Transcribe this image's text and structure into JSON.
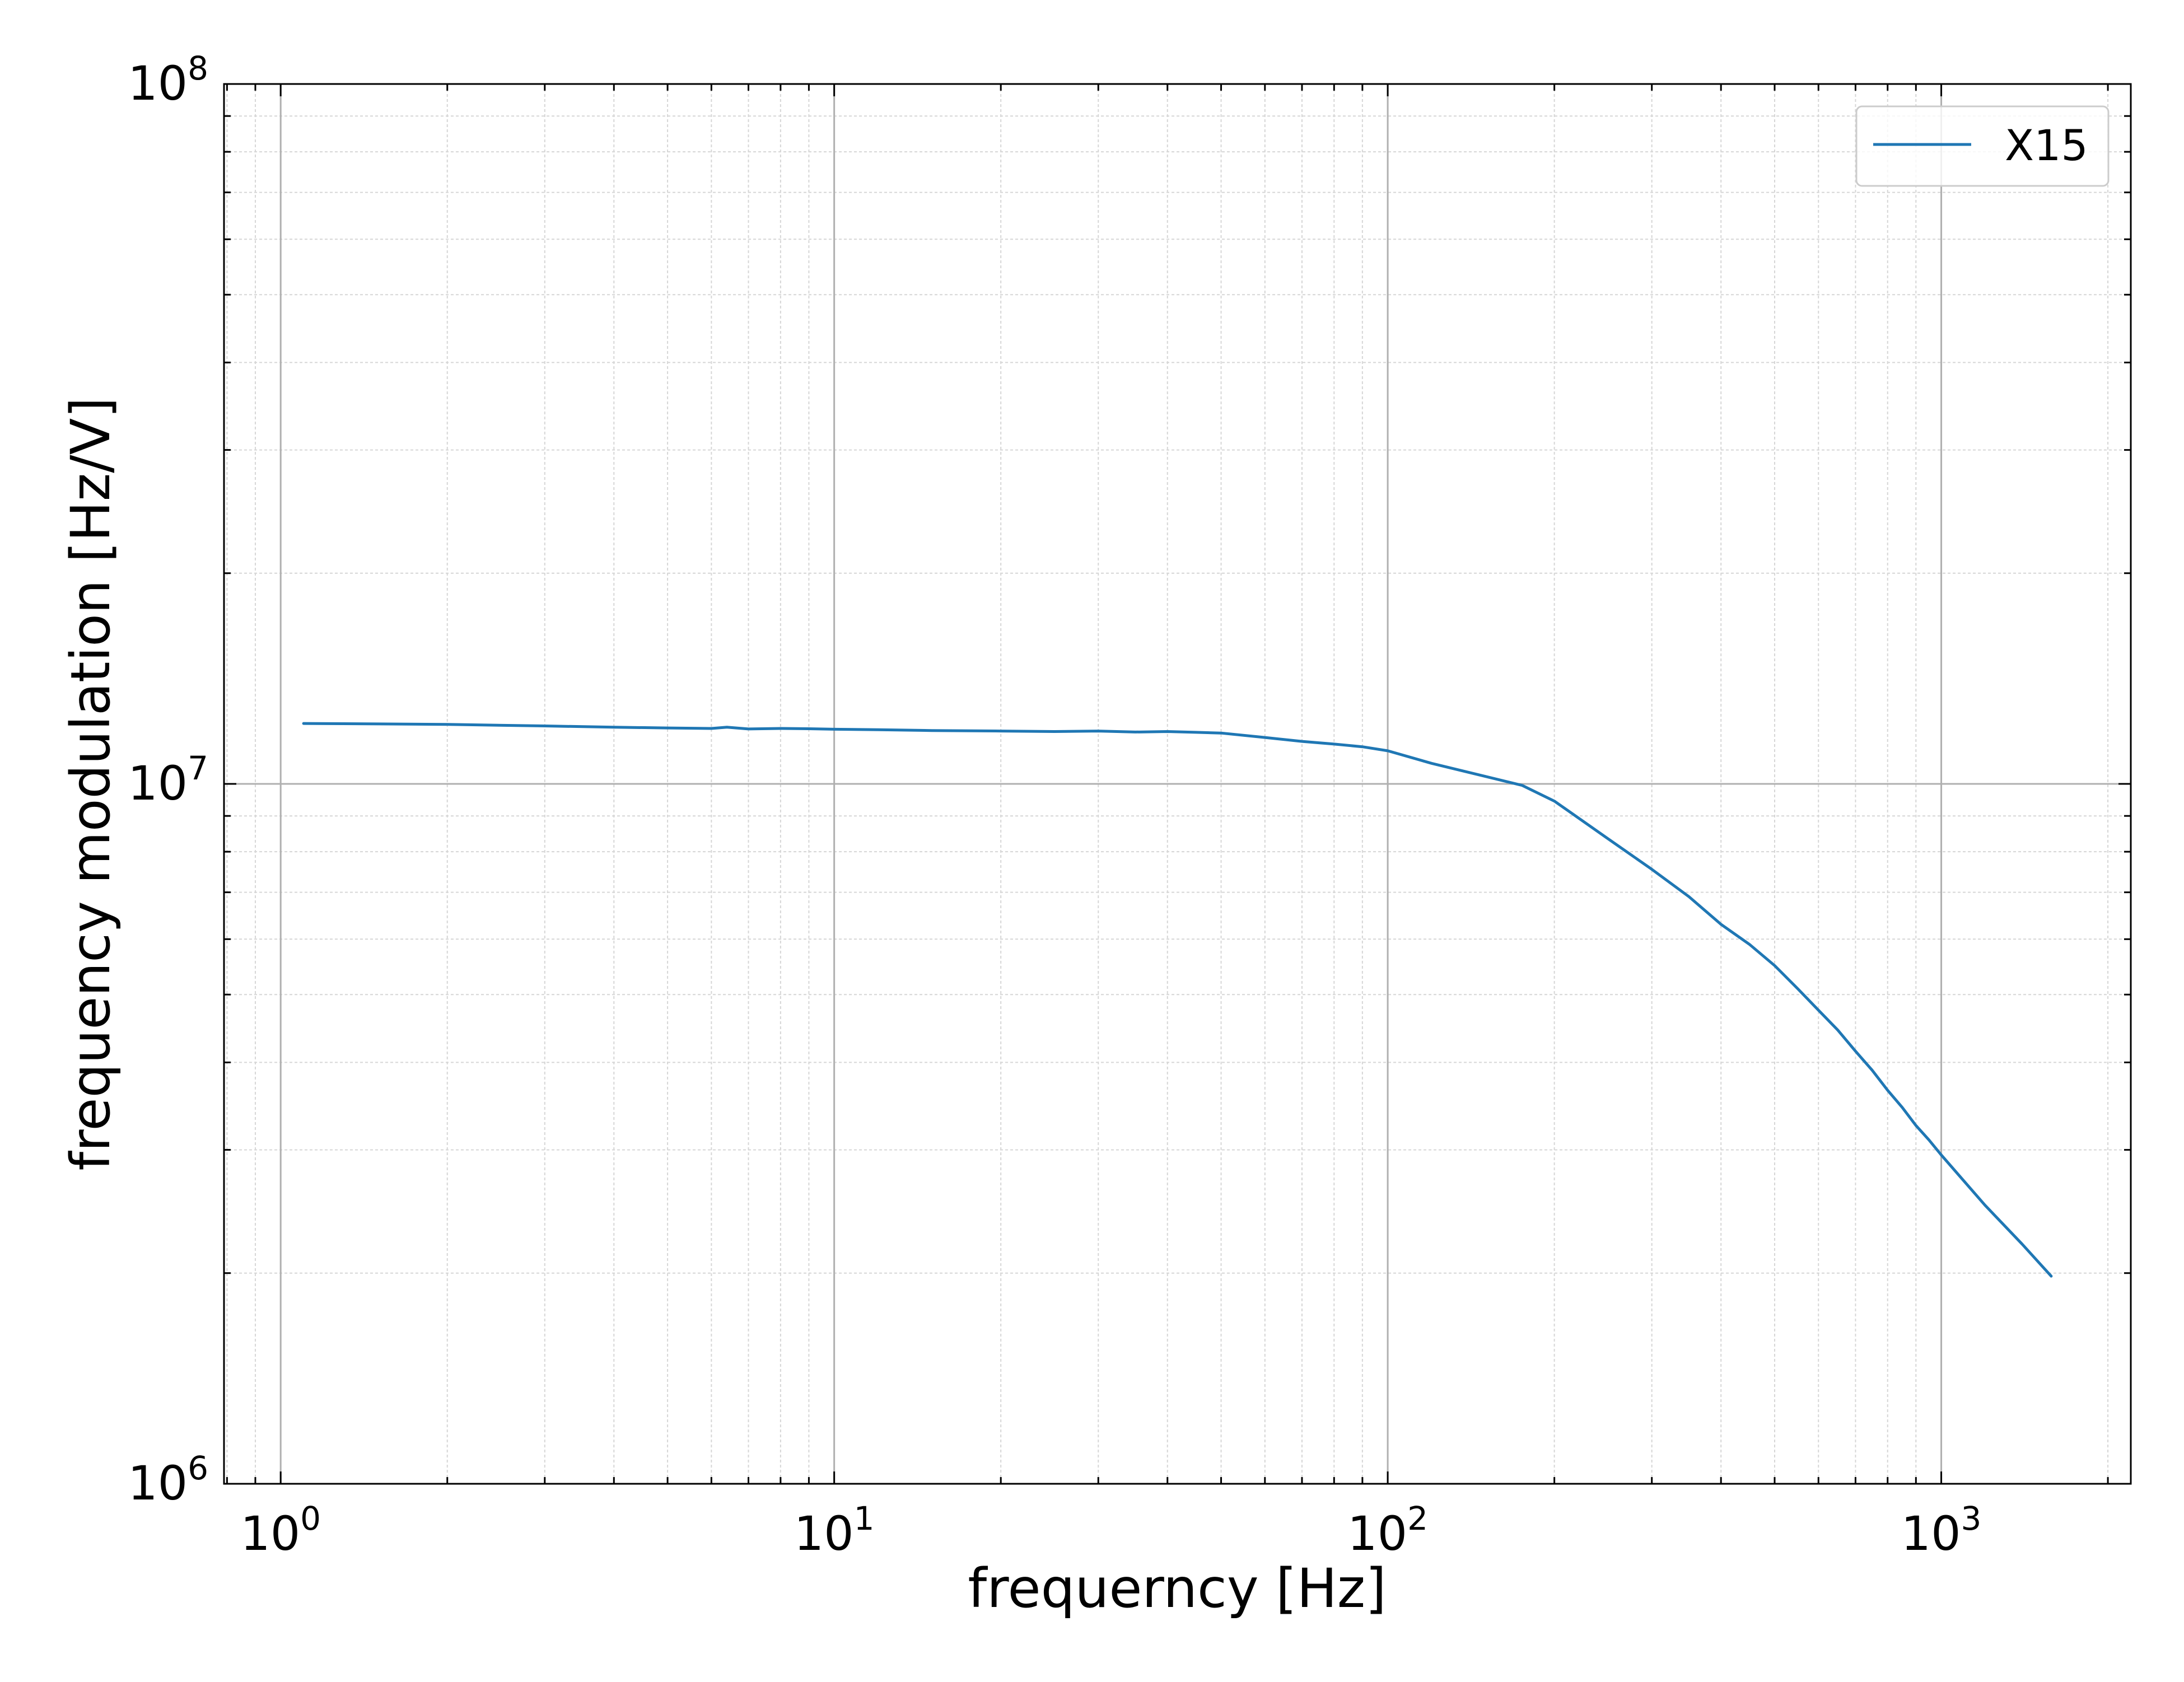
{
  "chart_data": {
    "type": "line",
    "xlabel": "frequerncy [Hz]",
    "ylabel": "frequency modulation [Hz/V]",
    "xscale": "log",
    "yscale": "log",
    "xlim": [
      0.79,
      2200
    ],
    "ylim": [
      1000000,
      100000000
    ],
    "grid": true,
    "legend_position": "top-right",
    "x_ticks": [
      {
        "base": "10",
        "exp": "0"
      },
      {
        "base": "10",
        "exp": "1"
      },
      {
        "base": "10",
        "exp": "2"
      },
      {
        "base": "10",
        "exp": "3"
      }
    ],
    "y_ticks": [
      {
        "base": "10",
        "exp": "6"
      },
      {
        "base": "10",
        "exp": "7"
      },
      {
        "base": "10",
        "exp": "8"
      }
    ],
    "series": [
      {
        "name": "X15",
        "color": "#1f77b4",
        "x": [
          1.1,
          1.5,
          2,
          3,
          4,
          5,
          6,
          6.4,
          7,
          8,
          9,
          10,
          12,
          15,
          20,
          25,
          30,
          35,
          40,
          45,
          50,
          60,
          70,
          80,
          90,
          100,
          120,
          150,
          175,
          200,
          250,
          300,
          350,
          400,
          450,
          500,
          550,
          600,
          650,
          700,
          750,
          800,
          850,
          900,
          950,
          1000,
          1200,
          1400,
          1580
        ],
        "y": [
          12200000,
          12180000,
          12160000,
          12100000,
          12050000,
          12020000,
          12000000,
          12050000,
          11980000,
          12000000,
          11990000,
          11970000,
          11950000,
          11920000,
          11900000,
          11880000,
          11900000,
          11860000,
          11880000,
          11850000,
          11820000,
          11650000,
          11500000,
          11400000,
          11300000,
          11150000,
          10700000,
          10250000,
          9950000,
          9450000,
          8350000,
          7550000,
          6900000,
          6300000,
          5900000,
          5500000,
          5100000,
          4750000,
          4450000,
          4150000,
          3900000,
          3650000,
          3450000,
          3250000,
          3100000,
          2950000,
          2500000,
          2200000,
          1980000
        ]
      }
    ]
  }
}
